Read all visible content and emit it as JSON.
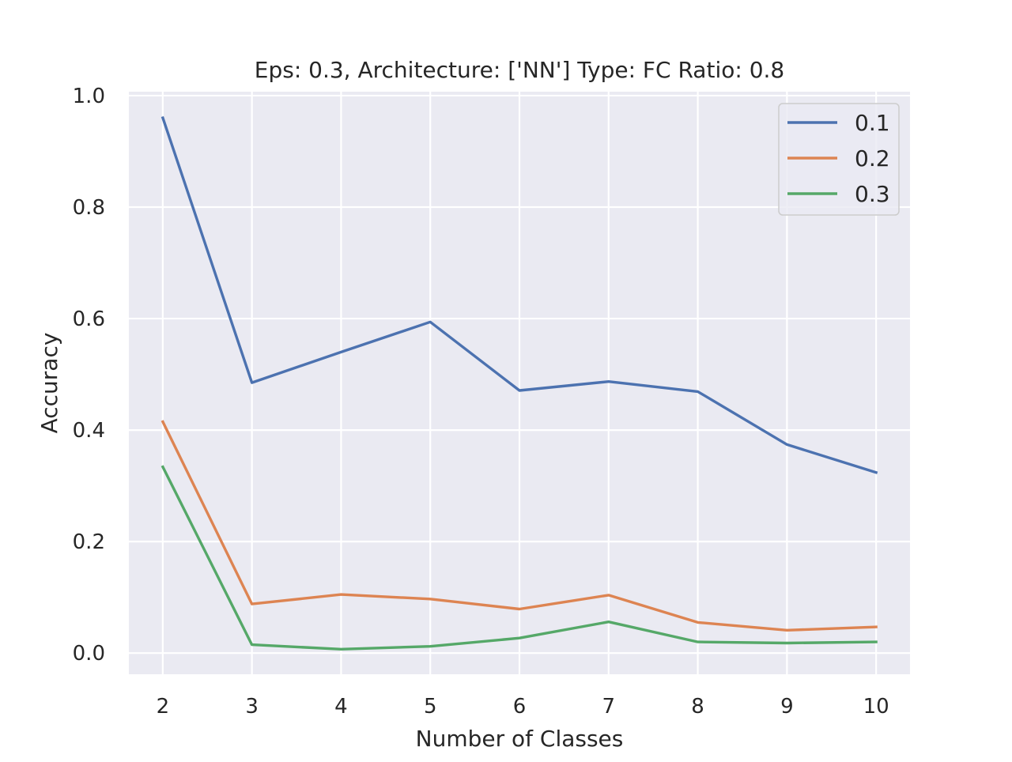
{
  "chart_data": {
    "type": "line",
    "title": "Eps: 0.3, Architecture: ['NN'] Type: FC Ratio: 0.8",
    "xlabel": "Number of Classes",
    "ylabel": "Accuracy",
    "x": [
      2,
      3,
      4,
      5,
      6,
      7,
      8,
      9,
      10
    ],
    "xlim": [
      1.62,
      10.38
    ],
    "ylim": [
      -0.038,
      1.007
    ],
    "x_ticks": [
      2,
      3,
      4,
      5,
      6,
      7,
      8,
      9,
      10
    ],
    "y_ticks": [
      0.0,
      0.2,
      0.4,
      0.6,
      0.8,
      1.0
    ],
    "y_tick_labels": [
      "0.0",
      "0.2",
      "0.4",
      "0.6",
      "0.8",
      "1.0"
    ],
    "grid": true,
    "legend_position": "top-right",
    "background_color": "#eaeaf2",
    "grid_color": "#ffffff",
    "series": [
      {
        "name": "0.1",
        "color": "#4c72b0",
        "values": [
          0.96,
          0.485,
          0.54,
          0.594,
          0.471,
          0.487,
          0.469,
          0.374,
          0.324
        ]
      },
      {
        "name": "0.2",
        "color": "#dd8452",
        "values": [
          0.415,
          0.088,
          0.105,
          0.097,
          0.079,
          0.104,
          0.055,
          0.041,
          0.047
        ]
      },
      {
        "name": "0.3",
        "color": "#55a868",
        "values": [
          0.334,
          0.015,
          0.007,
          0.012,
          0.027,
          0.056,
          0.02,
          0.018,
          0.02
        ]
      }
    ]
  }
}
